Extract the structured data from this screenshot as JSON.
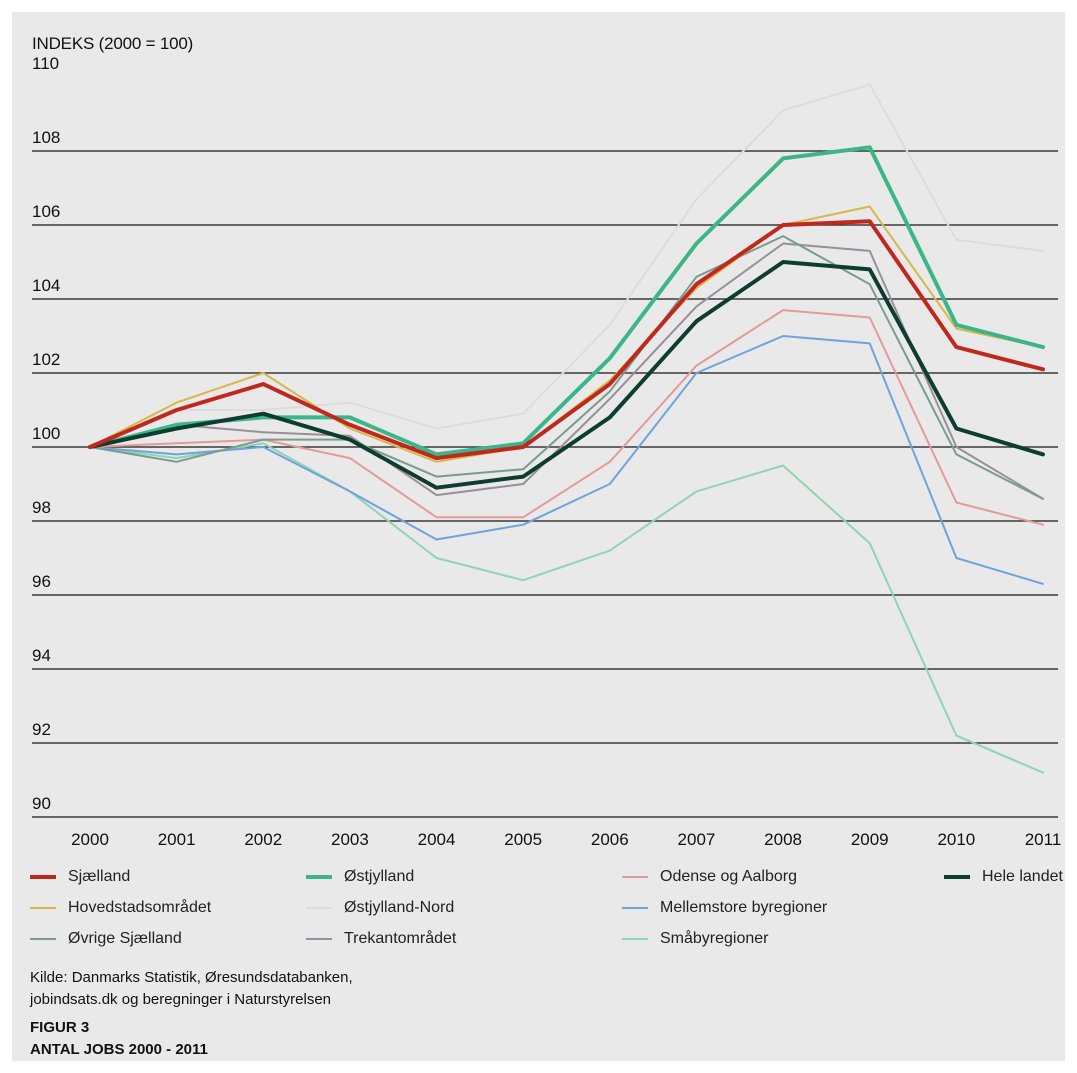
{
  "chart_data": {
    "type": "line",
    "ylabel": "INDEKS (2000 = 100)",
    "ylim": [
      90,
      110
    ],
    "yticks": [
      90,
      92,
      94,
      96,
      98,
      100,
      102,
      104,
      106,
      108,
      110
    ],
    "grid": true,
    "legend_position": "bottom",
    "categories": [
      "2000",
      "2001",
      "2002",
      "2003",
      "2004",
      "2005",
      "2006",
      "2007",
      "2008",
      "2009",
      "2010",
      "2011"
    ],
    "series": [
      {
        "name": "Småbyregioner",
        "color": "#8fd3b8",
        "width": 2,
        "values": [
          100,
          99.7,
          100.1,
          98.8,
          97.0,
          96.4,
          97.2,
          98.8,
          99.5,
          97.4,
          92.2,
          91.2
        ]
      },
      {
        "name": "Mellemstore byregioner",
        "color": "#6fa3dc",
        "width": 2,
        "values": [
          100,
          99.8,
          100.0,
          98.8,
          97.5,
          97.9,
          99.0,
          102.0,
          103.0,
          102.8,
          97.0,
          96.3
        ]
      },
      {
        "name": "Odense og Aalborg",
        "color": "#e39a9a",
        "width": 2,
        "values": [
          100,
          100.1,
          100.2,
          99.7,
          98.1,
          98.1,
          99.6,
          102.2,
          103.7,
          103.5,
          98.5,
          97.9
        ]
      },
      {
        "name": "Trekantområdet",
        "color": "#9a8f99",
        "width": 2,
        "values": [
          100,
          100.6,
          100.4,
          100.3,
          98.7,
          99.0,
          101.3,
          103.8,
          105.5,
          105.3,
          100.0,
          98.6
        ]
      },
      {
        "name": "Øvrige Sjælland",
        "color": "#7a9c8c",
        "width": 2,
        "values": [
          100,
          99.6,
          100.2,
          100.2,
          99.2,
          99.4,
          101.5,
          104.6,
          105.7,
          104.4,
          99.8,
          98.6
        ]
      },
      {
        "name": "Østjylland-Nord",
        "color": "#dcdcdc",
        "width": 2,
        "values": [
          100,
          101.0,
          101.0,
          101.2,
          100.5,
          100.9,
          103.3,
          106.7,
          109.1,
          109.8,
          105.6,
          105.3
        ]
      },
      {
        "name": "Hovedstadsområdet",
        "color": "#d6b84a",
        "width": 2,
        "values": [
          100,
          101.2,
          102.0,
          100.5,
          99.6,
          100.0,
          101.8,
          104.3,
          106.0,
          106.5,
          103.2,
          102.7
        ]
      },
      {
        "name": "Østjylland",
        "color": "#3bb589",
        "width": 4,
        "values": [
          100,
          100.6,
          100.8,
          100.8,
          99.8,
          100.1,
          102.4,
          105.5,
          107.8,
          108.1,
          103.3,
          102.7
        ]
      },
      {
        "name": "Hele landet",
        "color": "#0d3d2e",
        "width": 4,
        "values": [
          100,
          100.5,
          100.9,
          100.2,
          98.9,
          99.2,
          100.8,
          103.4,
          105.0,
          104.8,
          100.5,
          99.8
        ]
      },
      {
        "name": "Sjælland",
        "color": "#c0271d",
        "width": 4,
        "values": [
          100,
          101.0,
          101.7,
          100.6,
          99.7,
          100.0,
          101.7,
          104.4,
          106.0,
          106.1,
          102.7,
          102.1
        ]
      }
    ],
    "legend": [
      {
        "name": "Sjælland",
        "color": "#c0271d",
        "width": 4
      },
      {
        "name": "Østjylland",
        "color": "#3bb589",
        "width": 4
      },
      {
        "name": "Odense og Aalborg",
        "color": "#e39a9a",
        "width": 2
      },
      {
        "name": "Hele landet",
        "color": "#0d3d2e",
        "width": 4
      },
      {
        "name": "Hovedstadsområdet",
        "color": "#d6b84a",
        "width": 2
      },
      {
        "name": "Østjylland-Nord",
        "color": "#dcdcdc",
        "width": 2
      },
      {
        "name": "Mellemstore byregioner",
        "color": "#6fa3dc",
        "width": 2
      },
      {
        "name": "Øvrige Sjælland",
        "color": "#7a9c8c",
        "width": 2
      },
      {
        "name": "Trekantområdet",
        "color": "#9a8f99",
        "width": 2
      },
      {
        "name": "Småbyregioner",
        "color": "#8fd3b8",
        "width": 2
      }
    ]
  },
  "source": {
    "line1": "Kilde: Danmarks Statistik, Øresundsdatabanken,",
    "line2": "jobindsats.dk og beregninger i Naturstyrelsen"
  },
  "figure": {
    "number": "FIGUR 3",
    "title": "ANTAL JOBS 2000 - 2011"
  }
}
